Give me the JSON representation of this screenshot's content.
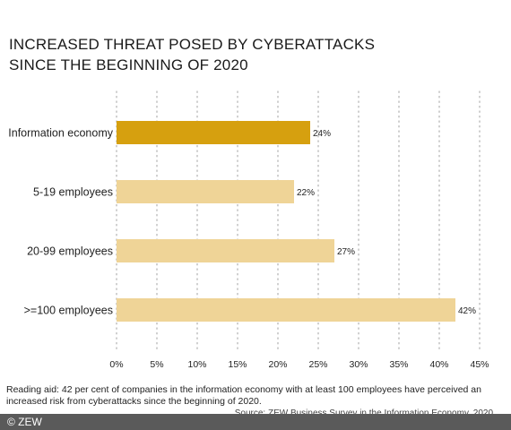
{
  "title_lines": [
    "INCREASED THREAT POSED BY CYBERATTACKS",
    "SINCE THE BEGINNING OF 2020"
  ],
  "reading_aid": "Reading aid: 42 per cent of companies in the information economy with at least 100 employees have perceived an increased risk from cyberattacks since the beginning of 2020.",
  "source": "Source: ZEW Business Survey in the Information Economy, 2020",
  "copyright": "© ZEW",
  "colors": {
    "highlight": "#d6a00f",
    "bar": "#efd497",
    "grid": "#b5b5b5",
    "footer": "#5a5a5a"
  },
  "chart_data": {
    "type": "bar",
    "orientation": "horizontal",
    "categories": [
      "Information economy",
      "5-19 employees",
      "20-99 employees",
      ">=100 employees"
    ],
    "values": [
      24,
      22,
      27,
      42
    ],
    "value_labels": [
      "24%",
      "22%",
      "27%",
      "42%"
    ],
    "highlight_index": 0,
    "xlim": [
      0,
      45
    ],
    "xticks": [
      0,
      5,
      10,
      15,
      20,
      25,
      30,
      35,
      40,
      45
    ],
    "xtick_labels": [
      "0%",
      "5%",
      "10%",
      "15%",
      "20%",
      "25%",
      "30%",
      "35%",
      "40%",
      "45%"
    ],
    "grid": "vertical-dotted",
    "xlabel": "",
    "ylabel": ""
  }
}
